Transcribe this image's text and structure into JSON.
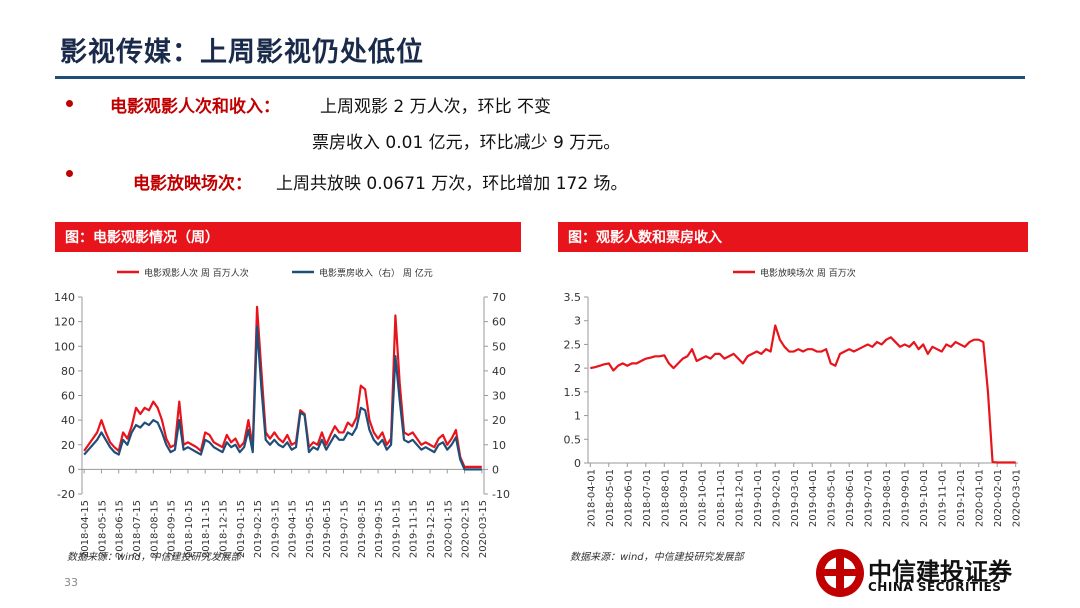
{
  "slide": {
    "title": "影视传媒：上周影视仍处低位",
    "bullets": [
      {
        "label": "电影观影人次和收入：",
        "lines": [
          "上周观影 2 万人次，环比 不变",
          "票房收入 0.01 亿元，环比减少 9 万元。"
        ]
      },
      {
        "label": "电影放映场次：",
        "lines": [
          "上周共放映 0.0671 万次，环比增加 172 场。"
        ]
      }
    ],
    "page_number": "33",
    "logo": {
      "name": "中信建投证券",
      "english": "CHINA SECURITIES"
    }
  },
  "chart_data": [
    {
      "type": "line",
      "title": "图：电影观影情况（周）",
      "source": "数据来源：wind，中信建投研究发展部",
      "legend": "top",
      "grid": false,
      "categories": [
        "2018-04-15",
        null,
        null,
        null,
        "2018-05-15",
        null,
        null,
        null,
        "2018-06-15",
        null,
        null,
        null,
        "2018-07-15",
        null,
        null,
        null,
        "2018-08-15",
        null,
        null,
        null,
        "2018-09-15",
        null,
        null,
        null,
        "2018-10-15",
        null,
        null,
        null,
        "2018-11-15",
        null,
        null,
        null,
        "2018-12-15",
        null,
        null,
        null,
        "2019-01-15",
        null,
        null,
        null,
        "2019-02-15",
        null,
        null,
        null,
        "2019-03-15",
        null,
        null,
        null,
        "2019-04-15",
        null,
        null,
        null,
        "2019-05-15",
        null,
        null,
        null,
        "2019-06-15",
        null,
        null,
        null,
        "2019-07-15",
        null,
        null,
        null,
        "2019-08-15",
        null,
        null,
        null,
        "2019-09-15",
        null,
        null,
        null,
        "2019-10-15",
        null,
        null,
        null,
        "2019-11-15",
        null,
        null,
        null,
        "2019-12-15",
        null,
        null,
        null,
        "2020-01-15",
        null,
        null,
        null,
        "2020-02-15",
        null,
        null,
        null,
        "2020-03-15"
      ],
      "ylim": [
        -20,
        140
      ],
      "yticks": [
        -20,
        0,
        20,
        40,
        60,
        80,
        100,
        120,
        140
      ],
      "y2lim": [
        -10,
        70
      ],
      "y2ticks": [
        -10,
        0,
        10,
        20,
        30,
        40,
        50,
        60,
        70
      ],
      "series": [
        {
          "name": "电影观影人次 周 百万人次",
          "color": "#e8141c",
          "values": [
            15,
            20,
            25,
            30,
            40,
            30,
            22,
            18,
            15,
            30,
            25,
            35,
            50,
            45,
            50,
            48,
            55,
            50,
            40,
            25,
            18,
            20,
            55,
            20,
            22,
            20,
            18,
            15,
            30,
            28,
            22,
            20,
            18,
            28,
            22,
            25,
            18,
            22,
            40,
            18,
            132,
            80,
            30,
            25,
            30,
            25,
            22,
            28,
            20,
            22,
            48,
            45,
            18,
            22,
            20,
            30,
            20,
            28,
            35,
            30,
            30,
            38,
            35,
            42,
            68,
            65,
            40,
            30,
            25,
            30,
            20,
            25,
            125,
            70,
            30,
            28,
            30,
            25,
            20,
            22,
            20,
            18,
            25,
            28,
            20,
            25,
            32,
            10,
            2,
            2,
            2,
            2,
            2
          ]
        },
        {
          "name": "电影票房收入（右） 周 亿元",
          "color": "#1f4e79",
          "axis": "y2",
          "values": [
            6,
            8,
            10,
            12,
            15,
            12,
            9,
            7,
            6,
            12,
            10,
            15,
            18,
            17,
            19,
            18,
            20,
            19,
            15,
            10,
            7,
            8,
            20,
            8,
            9,
            8,
            7,
            6,
            12,
            11,
            9,
            8,
            7,
            11,
            9,
            10,
            7,
            9,
            16,
            7,
            58,
            33,
            12,
            10,
            12,
            10,
            9,
            11,
            8,
            9,
            23,
            22,
            7,
            9,
            8,
            12,
            8,
            11,
            14,
            12,
            12,
            15,
            14,
            17,
            25,
            24,
            16,
            12,
            10,
            12,
            8,
            10,
            46,
            28,
            12,
            11,
            12,
            10,
            8,
            9,
            8,
            7,
            10,
            11,
            8,
            10,
            13,
            4,
            0,
            0,
            0,
            0,
            0
          ]
        }
      ]
    },
    {
      "type": "line",
      "title": "图：观影人数和票房收入",
      "source": "数据来源：wind，中信建投研究发展部",
      "legend": "top",
      "grid": false,
      "categories": [
        "2018-04-01",
        null,
        null,
        null,
        "2018-05-01",
        null,
        null,
        null,
        "2018-06-01",
        null,
        null,
        null,
        "2018-07-01",
        null,
        null,
        null,
        "2018-08-01",
        null,
        null,
        null,
        "2018-09-01",
        null,
        null,
        null,
        "2018-10-01",
        null,
        null,
        null,
        "2018-11-01",
        null,
        null,
        null,
        "2018-12-01",
        null,
        null,
        null,
        "2019-01-01",
        null,
        null,
        null,
        "2019-02-01",
        null,
        null,
        null,
        "2019-03-01",
        null,
        null,
        null,
        "2019-04-01",
        null,
        null,
        null,
        "2019-05-01",
        null,
        null,
        null,
        "2019-06-01",
        null,
        null,
        null,
        "2019-07-01",
        null,
        null,
        null,
        "2019-08-01",
        null,
        null,
        null,
        "2019-09-01",
        null,
        null,
        null,
        "2019-10-01",
        null,
        null,
        null,
        "2019-11-01",
        null,
        null,
        null,
        "2019-12-01",
        null,
        null,
        null,
        "2020-01-01",
        null,
        null,
        null,
        "2020-02-01",
        null,
        null,
        null,
        "2020-03-01"
      ],
      "ylim": [
        0,
        3.5
      ],
      "yticks": [
        0,
        0.5,
        1,
        1.5,
        2,
        2.5,
        3,
        3.5
      ],
      "series": [
        {
          "name": "电影放映场次 周 百万次",
          "color": "#e8141c",
          "values": [
            2.0,
            2.02,
            2.05,
            2.08,
            2.1,
            1.95,
            2.05,
            2.1,
            2.05,
            2.1,
            2.1,
            2.15,
            2.2,
            2.22,
            2.25,
            2.25,
            2.27,
            2.1,
            2.0,
            2.1,
            2.2,
            2.25,
            2.4,
            2.15,
            2.2,
            2.25,
            2.2,
            2.3,
            2.3,
            2.2,
            2.25,
            2.3,
            2.2,
            2.1,
            2.25,
            2.3,
            2.35,
            2.3,
            2.4,
            2.35,
            2.9,
            2.6,
            2.45,
            2.35,
            2.35,
            2.4,
            2.35,
            2.4,
            2.4,
            2.35,
            2.35,
            2.4,
            2.1,
            2.05,
            2.3,
            2.35,
            2.4,
            2.35,
            2.4,
            2.45,
            2.5,
            2.45,
            2.55,
            2.5,
            2.6,
            2.65,
            2.55,
            2.45,
            2.5,
            2.45,
            2.55,
            2.4,
            2.5,
            2.3,
            2.45,
            2.4,
            2.35,
            2.5,
            2.45,
            2.55,
            2.5,
            2.45,
            2.55,
            2.6,
            2.6,
            2.55,
            1.5,
            0.02,
            0.01,
            0.01,
            0.01,
            0.01,
            0.01
          ]
        }
      ]
    }
  ]
}
